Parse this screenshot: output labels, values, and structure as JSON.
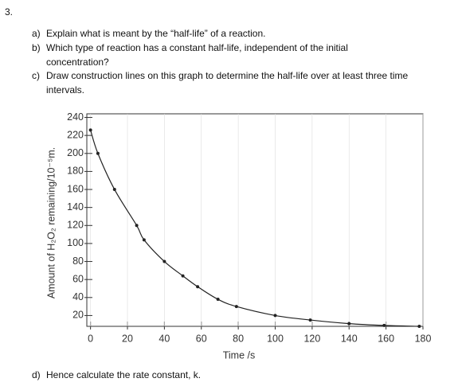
{
  "number": "3.",
  "parts": [
    {
      "label": "a)",
      "text": "Explain what is meant by the “half-life” of a reaction."
    },
    {
      "label": "b)",
      "text": "Which type of reaction has a constant half-life, independent of the initial concentration?"
    },
    {
      "label": "c)",
      "text": "Draw construction lines on this graph to determine the half-life over at least three time intervals."
    },
    {
      "label": "d)",
      "text": "Hence calculate the rate constant, k."
    }
  ],
  "chart_data": {
    "type": "line",
    "x_label": "Time /s",
    "y_label": "Amount of H₂O₂ remaining/10⁻⁵m.",
    "series": [
      {
        "color": "#222222",
        "x": [
          0,
          4,
          13,
          25,
          29,
          40,
          50,
          58,
          69,
          79,
          100,
          119,
          140,
          159,
          178
        ],
        "values": [
          226,
          200,
          160,
          120,
          104,
          80,
          64,
          52,
          38,
          30,
          20,
          15,
          11,
          9,
          8
        ]
      }
    ],
    "xlim": [
      -2,
      180
    ],
    "ylim": [
      8,
      244
    ],
    "xticks": [
      0,
      20,
      40,
      60,
      80,
      100,
      120,
      140,
      160,
      180
    ],
    "yticks": [
      20,
      40,
      60,
      80,
      100,
      120,
      140,
      160,
      180,
      200,
      220,
      240
    ]
  }
}
